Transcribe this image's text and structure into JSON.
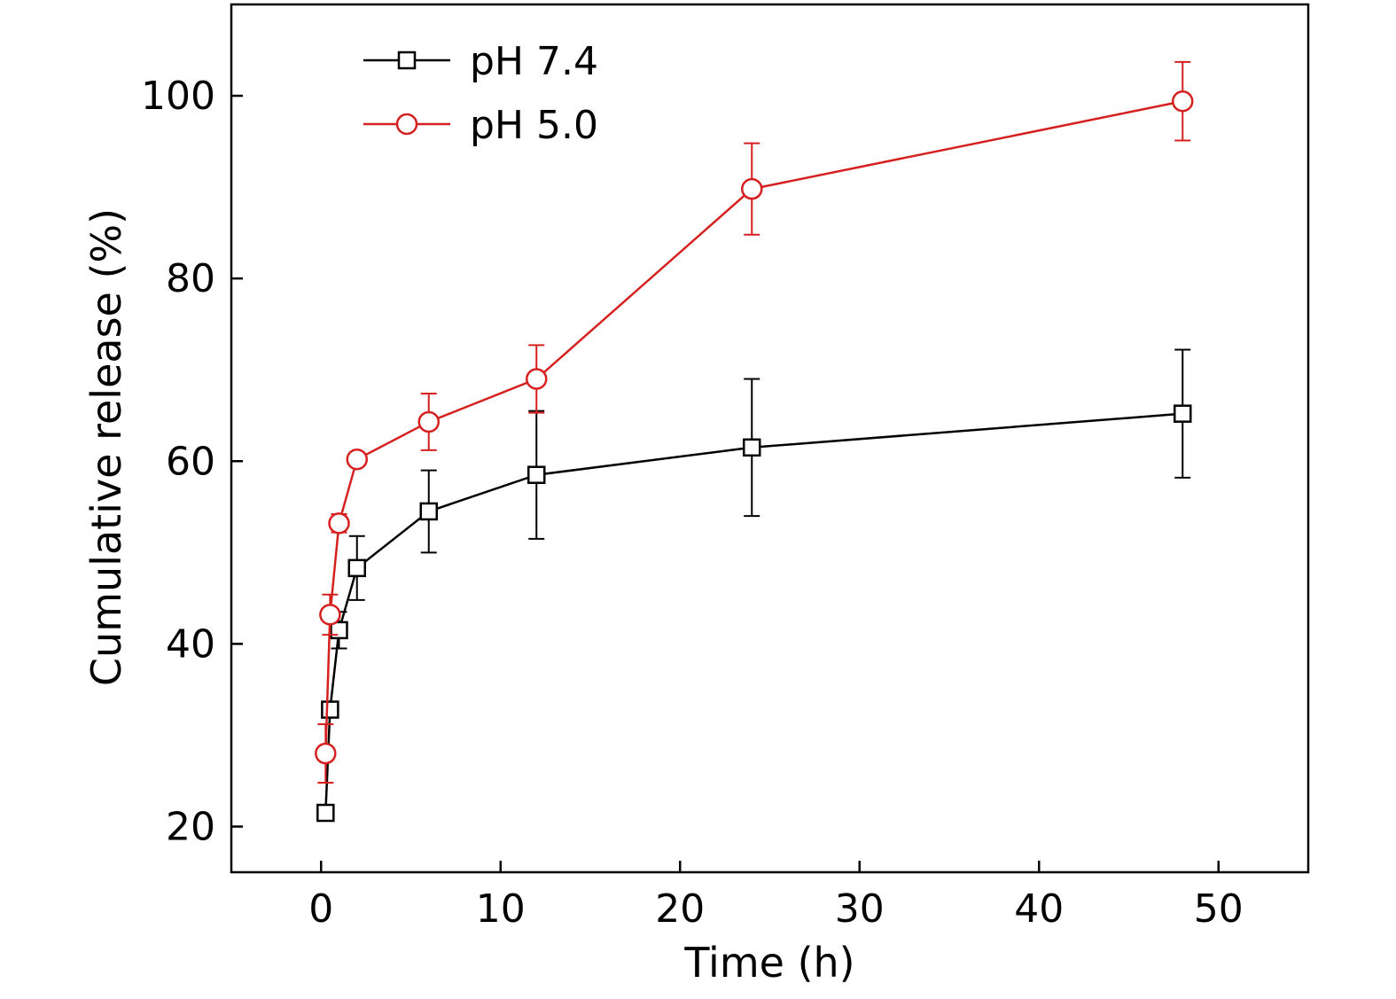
{
  "chart_data": {
    "type": "line",
    "title": "",
    "xlabel": "Time (h)",
    "ylabel": "Cumulative release (%)",
    "xlim": [
      -5,
      55
    ],
    "ylim": [
      15,
      110
    ],
    "xticks": [
      0,
      10,
      20,
      30,
      40,
      50
    ],
    "yticks": [
      20,
      40,
      60,
      80,
      100
    ],
    "grid": false,
    "legend": "top-left",
    "series": [
      {
        "name": "pH 7.4",
        "color": "#000000",
        "marker": "square",
        "x": [
          0.25,
          0.5,
          1,
          2,
          6,
          12,
          24,
          48
        ],
        "y": [
          21.5,
          32.8,
          41.5,
          48.3,
          54.5,
          58.5,
          61.5,
          65.2
        ],
        "err": [
          0,
          0,
          2,
          3.5,
          4.5,
          7,
          7.5,
          7
        ]
      },
      {
        "name": "pH 5.0",
        "color": "#d62020",
        "marker": "circle",
        "x": [
          0.25,
          0.5,
          1,
          2,
          6,
          12,
          24,
          48
        ],
        "y": [
          28,
          43.2,
          53.2,
          60.2,
          64.3,
          69,
          89.8,
          99.4
        ],
        "err": [
          3.2,
          2.2,
          1,
          0,
          3.1,
          3.7,
          5,
          4.3
        ]
      }
    ]
  }
}
